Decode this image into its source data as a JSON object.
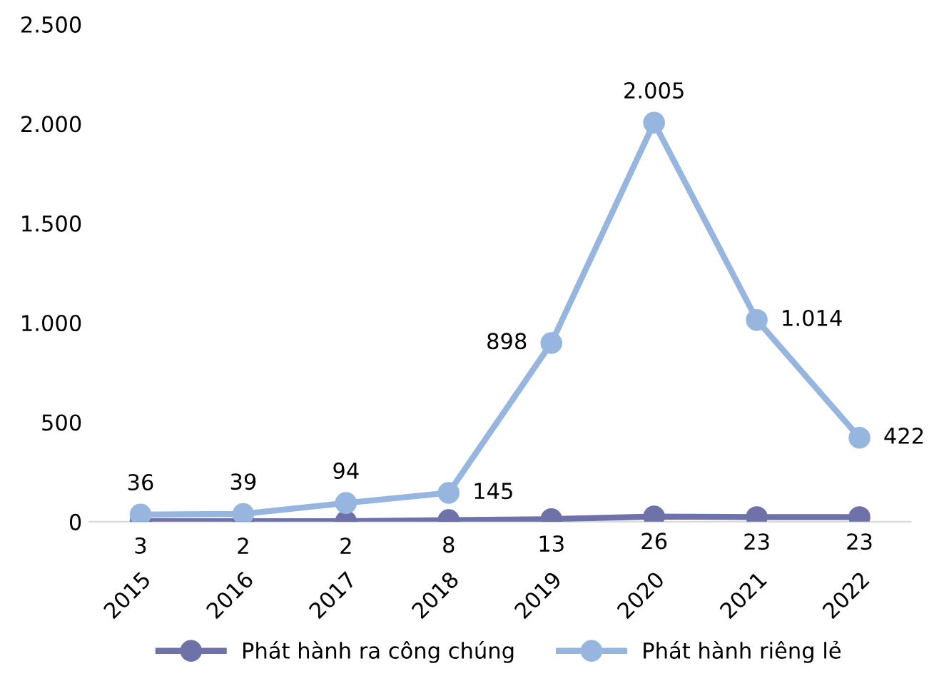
{
  "chart_data": {
    "type": "line",
    "categories": [
      "2015",
      "2016",
      "2017",
      "2018",
      "2019",
      "2020",
      "2021",
      "2022"
    ],
    "series": [
      {
        "name": "Phát hành ra công chúng",
        "color": "#6e72a8",
        "values": [
          3,
          2,
          2,
          8,
          13,
          26,
          23,
          23
        ],
        "value_labels": [
          "3",
          "2",
          "2",
          "8",
          "13",
          "26",
          "23",
          "23"
        ]
      },
      {
        "name": "Phát hành riêng lẻ",
        "color": "#97b6df",
        "values": [
          36,
          39,
          94,
          145,
          898,
          2005,
          1014,
          422
        ],
        "value_labels": [
          "36",
          "39",
          "94",
          "145",
          "898",
          "2.005",
          "1.014",
          "422"
        ]
      }
    ],
    "ylim": [
      0,
      2500
    ],
    "yticks": [
      {
        "value": 0,
        "label": "0"
      },
      {
        "value": 500,
        "label": "500"
      },
      {
        "value": 1000,
        "label": "1.000"
      },
      {
        "value": 1500,
        "label": "1.500"
      },
      {
        "value": 2000,
        "label": "2.000"
      },
      {
        "value": 2500,
        "label": "2.500"
      }
    ],
    "grid": false,
    "legend": "bottom",
    "marker": "circle",
    "line_style": "solid"
  }
}
